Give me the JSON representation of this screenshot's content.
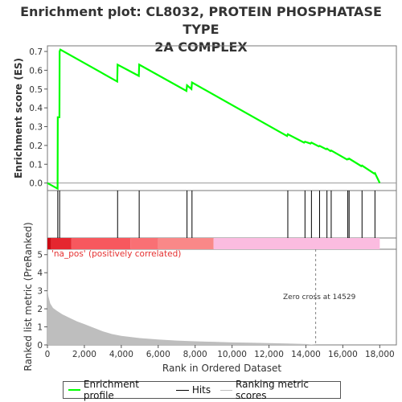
{
  "title_lines": [
    "Enrichment plot: CL8032, PROTEIN PHOSPHATASE TYPE",
    "2A COMPLEX"
  ],
  "colors": {
    "es_line": "#00ff00",
    "hits": "#000000",
    "metric": "#bebebe",
    "zero_line": "#808080",
    "bar_red_dark": "#e5262f",
    "bar_red": "#f7585e",
    "bar_salmon": "#f98888",
    "bar_pink": "#fbbce0",
    "pos_label": "#e53030"
  },
  "chart_data": {
    "type": "line",
    "title": "Enrichment plot: CL8032, PROTEIN PHOSPHATASE TYPE 2A COMPLEX",
    "xlabel": "Rank in Ordered Dataset",
    "xlim": [
      0,
      18900
    ],
    "x_ticks": [
      0,
      2000,
      4000,
      6000,
      8000,
      10000,
      12000,
      14000,
      16000,
      18000
    ],
    "x_tick_labels": [
      "0",
      "2,000",
      "4,000",
      "6,000",
      "8,000",
      "10,000",
      "12,000",
      "14,000",
      "16,000",
      "18,000"
    ],
    "es_panel": {
      "ylabel": "Enrichment score (ES)",
      "ylim": [
        -0.04,
        0.73
      ],
      "y_ticks": [
        0.0,
        0.1,
        0.2,
        0.3,
        0.4,
        0.5,
        0.6,
        0.7
      ],
      "y_tick_labels": [
        "0.0",
        "0.1",
        "0.2",
        "0.3",
        "0.4",
        "0.5",
        "0.6",
        "0.7"
      ],
      "series": [
        {
          "name": "Enrichment profile",
          "x": [
            0,
            550,
            560,
            650,
            660,
            700,
            3780,
            3800,
            4950,
            4970,
            7530,
            7560,
            7800,
            7830,
            12980,
            13020,
            13900,
            13950,
            14250,
            14300,
            14700,
            14740,
            15100,
            15140,
            15330,
            15370,
            16230,
            16270,
            16300,
            16340,
            17000,
            17040,
            17700,
            17740,
            18000
          ],
          "y": [
            0.0,
            -0.03,
            0.35,
            0.35,
            0.7,
            0.71,
            0.54,
            0.63,
            0.57,
            0.63,
            0.49,
            0.52,
            0.5,
            0.535,
            0.25,
            0.26,
            0.215,
            0.22,
            0.21,
            0.215,
            0.195,
            0.198,
            0.18,
            0.183,
            0.17,
            0.173,
            0.125,
            0.128,
            0.127,
            0.13,
            0.09,
            0.093,
            0.05,
            0.053,
            0.0
          ]
        }
      ]
    },
    "hits": {
      "name": "Hits",
      "positions": [
        560,
        660,
        3800,
        4970,
        7560,
        7830,
        13020,
        13950,
        14300,
        14740,
        15140,
        15370,
        16270,
        16340,
        17040,
        17740
      ]
    },
    "heat_bar": {
      "segments": [
        {
          "from": 0,
          "to": 200,
          "color": "#cc0a14"
        },
        {
          "from": 200,
          "to": 1300,
          "color": "#e5262f"
        },
        {
          "from": 1300,
          "to": 4500,
          "color": "#f7585e"
        },
        {
          "from": 4500,
          "to": 6000,
          "color": "#f97074"
        },
        {
          "from": 6000,
          "to": 9000,
          "color": "#f98888"
        },
        {
          "from": 9000,
          "to": 18000,
          "color": "#fbbce0"
        }
      ]
    },
    "metric_panel": {
      "ylabel": "Ranked list metric (PreRanked)",
      "ylim": [
        0,
        5.3
      ],
      "y_ticks": [
        0,
        1,
        2,
        3,
        4,
        5
      ],
      "y_tick_labels": [
        "0",
        "1",
        "2",
        "3",
        "4",
        "5"
      ],
      "series": [
        {
          "name": "Ranking metric scores",
          "x": [
            0,
            50,
            150,
            300,
            500,
            800,
            1200,
            1600,
            2000,
            2500,
            3000,
            3500,
            4000,
            5000,
            6000,
            7000,
            8000,
            9000,
            10000,
            11000,
            12000,
            13000,
            14000,
            14529,
            18000
          ],
          "y": [
            3.1,
            2.7,
            2.3,
            2.05,
            1.9,
            1.7,
            1.5,
            1.3,
            1.15,
            0.95,
            0.75,
            0.6,
            0.5,
            0.38,
            0.3,
            0.24,
            0.2,
            0.17,
            0.14,
            0.12,
            0.1,
            0.08,
            0.05,
            0.0,
            0.0
          ]
        }
      ],
      "annotation_pos": "'na_pos' (positively correlated)",
      "zero_cross_rank": 14529,
      "zero_cross_label": "Zero cross at 14529"
    },
    "grid": false,
    "legend_position": "bottom"
  },
  "legend": {
    "items": [
      {
        "label": "Enrichment profile",
        "color": "#00ff00"
      },
      {
        "label": "Hits",
        "color": "#000000"
      },
      {
        "label": "Ranking metric scores",
        "color": "#bebebe"
      }
    ]
  }
}
